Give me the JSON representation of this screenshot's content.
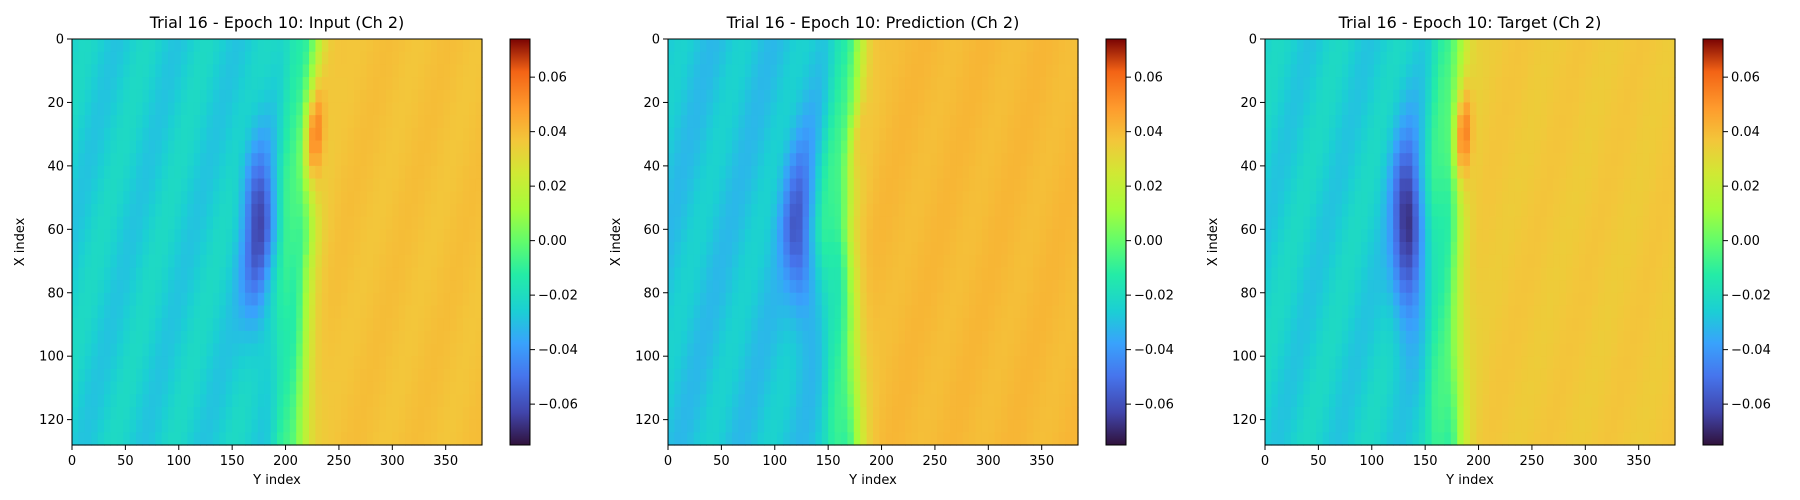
{
  "chart_data": [
    {
      "type": "heatmap",
      "title": "Trial 16 - Epoch 10: Input (Ch 2)",
      "xlabel": "Y index",
      "ylabel": "X index",
      "xlim": [
        0,
        384
      ],
      "ylim": [
        128,
        0
      ],
      "xticks": [
        0,
        50,
        100,
        150,
        200,
        250,
        300,
        350
      ],
      "yticks": [
        0,
        20,
        40,
        60,
        80,
        100,
        120
      ],
      "colorbar": {
        "range": [
          -0.075,
          0.074
        ],
        "ticks": [
          "0.06",
          "0.04",
          "0.02",
          "0.00",
          "−0.02",
          "−0.04",
          "−0.06"
        ],
        "tick_values": [
          0.06,
          0.04,
          0.02,
          0.0,
          -0.02,
          -0.04,
          -0.06
        ]
      },
      "colormap": "turbo",
      "field": {
        "front_y": [
          228,
          222,
          219,
          221,
          217,
          216,
          214
        ],
        "front_x": [
          0,
          20,
          40,
          60,
          80,
          100,
          128
        ],
        "left_level": -0.025,
        "right_level": 0.038,
        "blob_min": -0.06,
        "blob_max": 0.07
      }
    },
    {
      "type": "heatmap",
      "title": "Trial 16 - Epoch 10: Prediction (Ch 2)",
      "xlabel": "Y index",
      "ylabel": "X index",
      "xlim": [
        0,
        384
      ],
      "ylim": [
        128,
        0
      ],
      "xticks": [
        0,
        50,
        100,
        150,
        200,
        250,
        300,
        350
      ],
      "yticks": [
        0,
        20,
        40,
        60,
        80,
        100,
        120
      ],
      "colorbar": {
        "range": [
          -0.075,
          0.074
        ],
        "ticks": [
          "0.06",
          "0.04",
          "0.02",
          "0.00",
          "−0.02",
          "−0.04",
          "−0.06"
        ],
        "tick_values": [
          0.06,
          0.04,
          0.02,
          0.0,
          -0.02,
          -0.04,
          -0.06
        ]
      },
      "colormap": "turbo",
      "field": {
        "front_y": [
          178,
          175,
          168,
          165,
          170,
          172,
          175
        ],
        "front_x": [
          0,
          20,
          40,
          60,
          80,
          100,
          128
        ],
        "left_level": -0.028,
        "right_level": 0.04,
        "blob_min": -0.055,
        "blob_max": 0.05
      }
    },
    {
      "type": "heatmap",
      "title": "Trial 16 - Epoch 10: Target (Ch 2)",
      "xlabel": "Y index",
      "ylabel": "X index",
      "xlim": [
        0,
        384
      ],
      "ylim": [
        128,
        0
      ],
      "xticks": [
        0,
        50,
        100,
        150,
        200,
        250,
        300,
        350
      ],
      "yticks": [
        0,
        20,
        40,
        60,
        80,
        100,
        120
      ],
      "colorbar": {
        "range": [
          -0.075,
          0.074
        ],
        "ticks": [
          "0.06",
          "0.04",
          "0.02",
          "0.00",
          "−0.02",
          "−0.04",
          "−0.06"
        ],
        "tick_values": [
          0.06,
          0.04,
          0.02,
          0.0,
          -0.02,
          -0.04,
          -0.06
        ]
      },
      "colormap": "turbo",
      "field": {
        "front_y": [
          182,
          180,
          178,
          179,
          178,
          178,
          180
        ],
        "front_x": [
          0,
          20,
          40,
          60,
          80,
          100,
          128
        ],
        "left_level": -0.025,
        "right_level": 0.036,
        "blob_min": -0.07,
        "blob_max": 0.072
      }
    }
  ]
}
